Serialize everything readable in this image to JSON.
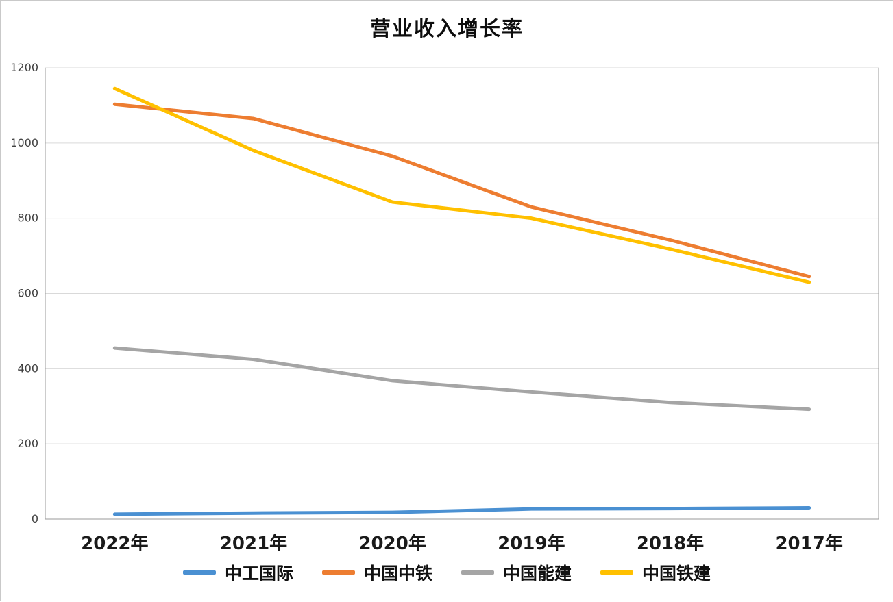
{
  "chart_data": {
    "type": "line",
    "title": "营业收入增长率",
    "categories": [
      "2022年",
      "2021年",
      "2020年",
      "2019年",
      "2018年",
      "2017年"
    ],
    "series": [
      {
        "name": "中工国际",
        "color": "#4A90D2",
        "values": [
          13,
          16,
          18,
          27,
          28,
          30
        ]
      },
      {
        "name": "中国中铁",
        "color": "#ED7D31",
        "values": [
          1103,
          1065,
          965,
          830,
          742,
          645
        ]
      },
      {
        "name": "中国能建",
        "color": "#A5A5A5",
        "values": [
          455,
          425,
          368,
          338,
          310,
          292
        ]
      },
      {
        "name": "中国铁建",
        "color": "#FFC000",
        "values": [
          1145,
          980,
          843,
          800,
          718,
          630
        ]
      }
    ],
    "ylim": [
      0,
      1200
    ],
    "yticks": [
      0,
      200,
      400,
      600,
      800,
      1000,
      1200
    ],
    "grid": true,
    "legend_position": "bottom",
    "axis_color": "#9a9a9a",
    "grid_color": "#d9d9d9",
    "tick_label_color": "#404040",
    "category_label_color": "#1a1a1a"
  }
}
